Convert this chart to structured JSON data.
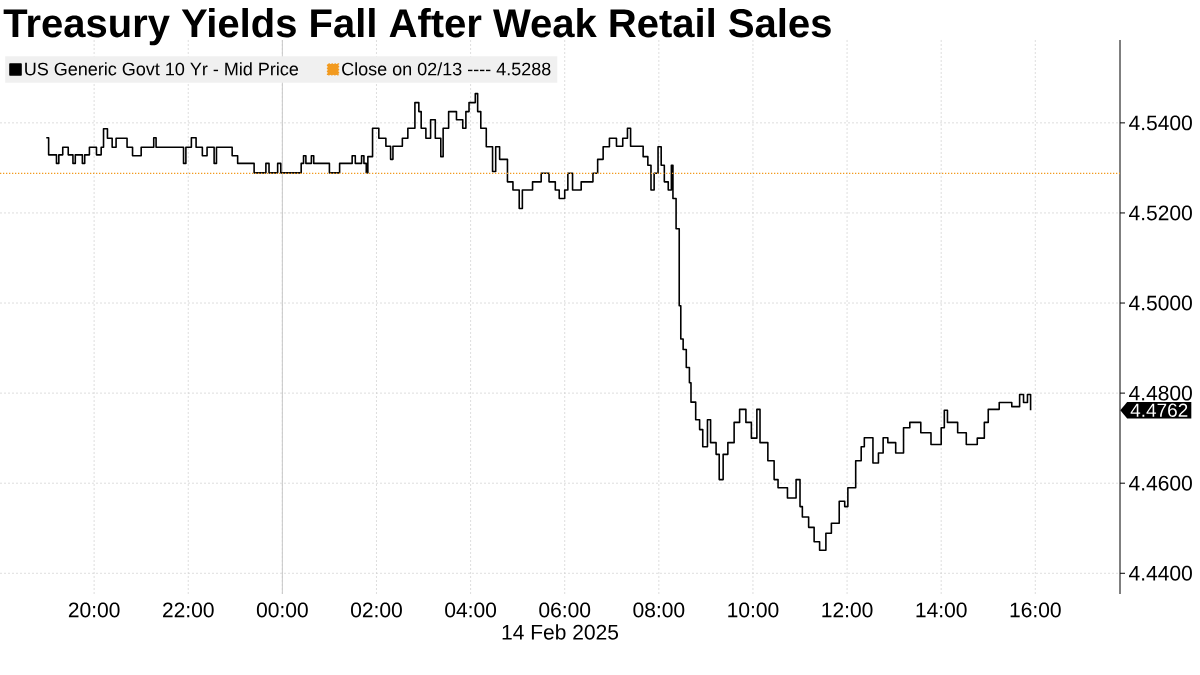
{
  "chart_data": {
    "type": "step",
    "title": "Treasury Yields Fall After Weak Retail Sales",
    "xlabel": "14 Feb 2025",
    "xlim": [
      "2025-02-13T18:00",
      "2025-02-14T17:48"
    ],
    "ylim": [
      4.4354,
      4.5584
    ],
    "xticks": [
      {
        "value": "2025-02-13T20:00",
        "label": "20:00"
      },
      {
        "value": "2025-02-13T22:00",
        "label": "22:00"
      },
      {
        "value": "2025-02-14T00:00",
        "label": "00:00"
      },
      {
        "value": "2025-02-14T02:00",
        "label": "02:00"
      },
      {
        "value": "2025-02-14T04:00",
        "label": "04:00"
      },
      {
        "value": "2025-02-14T06:00",
        "label": "06:00"
      },
      {
        "value": "2025-02-14T08:00",
        "label": "08:00"
      },
      {
        "value": "2025-02-14T10:00",
        "label": "10:00"
      },
      {
        "value": "2025-02-14T12:00",
        "label": "12:00"
      },
      {
        "value": "2025-02-14T14:00",
        "label": "14:00"
      },
      {
        "value": "2025-02-14T16:00",
        "label": "16:00"
      }
    ],
    "yticks": [
      {
        "value": 4.44,
        "label": "4.4400"
      },
      {
        "value": 4.46,
        "label": "4.4600"
      },
      {
        "value": 4.48,
        "label": "4.4800"
      },
      {
        "value": 4.5,
        "label": "4.5000"
      },
      {
        "value": 4.52,
        "label": "4.5200"
      },
      {
        "value": 4.54,
        "label": "4.5400"
      }
    ],
    "grid": true,
    "legend": "top left",
    "x": [
      "2025-02-13T18:59",
      "2025-02-13T19:02",
      "2025-02-13T19:12",
      "2025-02-13T19:15",
      "2025-02-13T19:20",
      "2025-02-13T19:27",
      "2025-02-13T19:33",
      "2025-02-13T19:36",
      "2025-02-13T19:45",
      "2025-02-13T19:48",
      "2025-02-13T19:54",
      "2025-02-13T20:03",
      "2025-02-13T20:09",
      "2025-02-13T20:12",
      "2025-02-13T20:17",
      "2025-02-13T20:23",
      "2025-02-13T20:28",
      "2025-02-13T20:42",
      "2025-02-13T20:49",
      "2025-02-13T21:00",
      "2025-02-13T21:16",
      "2025-02-13T21:19",
      "2025-02-13T21:54",
      "2025-02-13T21:57",
      "2025-02-13T22:04",
      "2025-02-13T22:10",
      "2025-02-13T22:18",
      "2025-02-13T22:24",
      "2025-02-13T22:33",
      "2025-02-13T22:36",
      "2025-02-13T22:56",
      "2025-02-13T23:03",
      "2025-02-13T23:24",
      "2025-02-13T23:39",
      "2025-02-13T23:43",
      "2025-02-13T23:54",
      "2025-02-13T23:58",
      "2025-02-14T00:24",
      "2025-02-14T00:27",
      "2025-02-14T00:30",
      "2025-02-14T00:37",
      "2025-02-14T00:40",
      "2025-02-14T01:00",
      "2025-02-14T01:13",
      "2025-02-14T01:29",
      "2025-02-14T01:33",
      "2025-02-14T01:41",
      "2025-02-14T01:44",
      "2025-02-14T01:47",
      "2025-02-14T01:49",
      "2025-02-14T01:55",
      "2025-02-14T02:03",
      "2025-02-14T02:12",
      "2025-02-14T02:18",
      "2025-02-14T02:21",
      "2025-02-14T02:33",
      "2025-02-14T02:40",
      "2025-02-14T02:49",
      "2025-02-14T02:54",
      "2025-02-14T02:57",
      "2025-02-14T03:03",
      "2025-02-14T03:09",
      "2025-02-14T03:15",
      "2025-02-14T03:22",
      "2025-02-14T03:25",
      "2025-02-14T03:32",
      "2025-02-14T03:42",
      "2025-02-14T03:50",
      "2025-02-14T03:54",
      "2025-02-14T03:58",
      "2025-02-14T04:06",
      "2025-02-14T04:09",
      "2025-02-14T04:13",
      "2025-02-14T04:20",
      "2025-02-14T04:28",
      "2025-02-14T04:32",
      "2025-02-14T04:37",
      "2025-02-14T04:47",
      "2025-02-14T04:54",
      "2025-02-14T05:02",
      "2025-02-14T05:06",
      "2025-02-14T05:19",
      "2025-02-14T05:30",
      "2025-02-14T05:40",
      "2025-02-14T05:48",
      "2025-02-14T05:53",
      "2025-02-14T06:00",
      "2025-02-14T06:04",
      "2025-02-14T06:10",
      "2025-02-14T06:21",
      "2025-02-14T06:36",
      "2025-02-14T06:42",
      "2025-02-14T06:49",
      "2025-02-14T06:57",
      "2025-02-14T07:06",
      "2025-02-14T07:14",
      "2025-02-14T07:20",
      "2025-02-14T07:24",
      "2025-02-14T07:40",
      "2025-02-14T07:46",
      "2025-02-14T07:50",
      "2025-02-14T07:54",
      "2025-02-14T07:59",
      "2025-02-14T08:03",
      "2025-02-14T08:07",
      "2025-02-14T08:12",
      "2025-02-14T08:16",
      "2025-02-14T08:18",
      "2025-02-14T08:22",
      "2025-02-14T08:26",
      "2025-02-14T08:28",
      "2025-02-14T08:31",
      "2025-02-14T08:35",
      "2025-02-14T08:39",
      "2025-02-14T08:41",
      "2025-02-14T08:47",
      "2025-02-14T08:52",
      "2025-02-14T08:56",
      "2025-02-14T09:02",
      "2025-02-14T09:06",
      "2025-02-14T09:13",
      "2025-02-14T09:17",
      "2025-02-14T09:22",
      "2025-02-14T09:28",
      "2025-02-14T09:36",
      "2025-02-14T09:43",
      "2025-02-14T09:51",
      "2025-02-14T09:58",
      "2025-02-14T10:05",
      "2025-02-14T10:09",
      "2025-02-14T10:19",
      "2025-02-14T10:27",
      "2025-02-14T10:32",
      "2025-02-14T10:44",
      "2025-02-14T10:55",
      "2025-02-14T11:00",
      "2025-02-14T11:03",
      "2025-02-14T11:11",
      "2025-02-14T11:18",
      "2025-02-14T11:25",
      "2025-02-14T11:33",
      "2025-02-14T11:40",
      "2025-02-14T11:50",
      "2025-02-14T11:57",
      "2025-02-14T12:01",
      "2025-02-14T12:11",
      "2025-02-14T12:18",
      "2025-02-14T12:22",
      "2025-02-14T12:33",
      "2025-02-14T12:40",
      "2025-02-14T12:46",
      "2025-02-14T12:52",
      "2025-02-14T13:02",
      "2025-02-14T13:12",
      "2025-02-14T13:20",
      "2025-02-14T13:34",
      "2025-02-14T13:47",
      "2025-02-14T14:00",
      "2025-02-14T14:04",
      "2025-02-14T14:08",
      "2025-02-14T14:21",
      "2025-02-14T14:32",
      "2025-02-14T14:46",
      "2025-02-14T14:55",
      "2025-02-14T15:00",
      "2025-02-14T15:14",
      "2025-02-14T15:30",
      "2025-02-14T15:40",
      "2025-02-14T15:45",
      "2025-02-14T15:50",
      "2025-02-14T15:54"
    ],
    "series": [
      {
        "name": "US Generic Govt 10 Yr - Mid Price",
        "color": "#000000",
        "values": [
          4.5367,
          4.5329,
          4.531,
          4.5329,
          4.5346,
          4.5329,
          4.531,
          4.5329,
          4.531,
          4.5329,
          4.5346,
          4.5329,
          4.5346,
          4.5387,
          4.5366,
          4.5346,
          4.5366,
          4.5346,
          4.5327,
          4.5346,
          4.5367,
          4.5346,
          4.531,
          4.5346,
          4.5367,
          4.5346,
          4.5327,
          4.5346,
          4.531,
          4.5346,
          4.5327,
          4.531,
          4.5289,
          4.531,
          4.5289,
          4.531,
          4.5289,
          4.531,
          4.5327,
          4.531,
          4.5327,
          4.531,
          4.5289,
          4.531,
          4.5327,
          4.531,
          4.5327,
          4.531,
          4.5289,
          4.5325,
          4.5388,
          4.5366,
          4.5348,
          4.5319,
          4.5348,
          4.5366,
          4.5388,
          4.5445,
          4.5425,
          4.5388,
          4.5366,
          4.5407,
          4.5366,
          4.5325,
          4.5388,
          4.5425,
          4.5407,
          4.5388,
          4.5425,
          4.5445,
          4.5465,
          4.5425,
          4.5388,
          4.5347,
          4.5292,
          4.5347,
          4.5319,
          4.5269,
          4.5251,
          4.521,
          4.5251,
          4.5269,
          4.5288,
          4.5269,
          4.5251,
          4.5232,
          4.5251,
          4.5288,
          4.5251,
          4.5269,
          4.5288,
          4.5319,
          4.5347,
          4.5366,
          4.5348,
          4.5366,
          4.5388,
          4.5348,
          4.5325,
          4.5306,
          4.5251,
          4.5288,
          4.5347,
          4.5306,
          4.5269,
          4.5251,
          4.5306,
          4.5232,
          4.5165,
          4.4994,
          4.492,
          4.4897,
          4.4857,
          4.4823,
          4.478,
          4.4741,
          4.4719,
          4.4681,
          4.4741,
          4.469,
          4.4664,
          4.4608,
          4.4664,
          4.469,
          4.4735,
          4.4764,
          4.4735,
          4.47,
          4.4764,
          4.469,
          4.465,
          4.4608,
          4.459,
          4.4567,
          4.4608,
          4.4548,
          4.4525,
          4.4502,
          4.447,
          4.4451,
          4.4489,
          4.4511,
          4.456,
          4.4548,
          4.459,
          4.465,
          4.4681,
          4.4701,
          4.4645,
          4.4667,
          4.4701,
          4.469,
          4.4667,
          4.4723,
          4.4735,
          4.4712,
          4.4686,
          4.4723,
          4.4762,
          4.4735,
          4.4712,
          4.4686,
          4.47,
          4.4735,
          4.4764,
          4.4779,
          4.477,
          4.4797,
          4.4779,
          4.4797,
          4.4762
        ]
      }
    ],
    "ref_lines": [
      {
        "axis": "x",
        "value": "2025-02-14T00:00",
        "color": "#c8c8c8",
        "line_style": "solid"
      },
      {
        "axis": "y",
        "value": 4.5288,
        "label": "Close on 02/13 ---- 4.5288",
        "color": "#f29a1f",
        "line_style": "dotted"
      }
    ],
    "annotations": [
      "4.4762"
    ]
  }
}
